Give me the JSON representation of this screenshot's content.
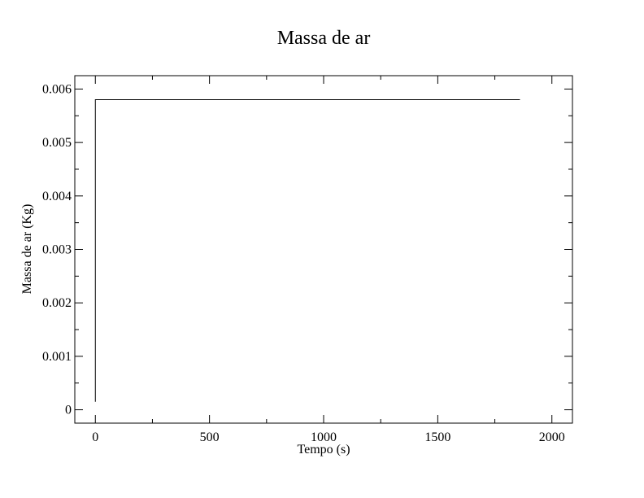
{
  "chart_data": {
    "type": "line",
    "title": "Massa de ar",
    "xlabel": "Tempo (s)",
    "ylabel": "Massa de ar (Kg)",
    "xlim": [
      -90,
      2090
    ],
    "ylim": [
      -0.00025,
      0.00625
    ],
    "xticks": [
      0,
      500,
      1000,
      1500,
      2000
    ],
    "xtick_labels": [
      "0",
      "500",
      "1000",
      "1500",
      "2000"
    ],
    "yticks": [
      0,
      0.001,
      0.002,
      0.003,
      0.004,
      0.005,
      0.006
    ],
    "ytick_labels": [
      "0",
      "0.001",
      "0.002",
      "0.003",
      "0.004",
      "0.005",
      "0.006"
    ],
    "grid": false,
    "series": [
      {
        "color": "#000000",
        "x": [
          0,
          0,
          1860
        ],
        "y": [
          0.00015,
          0.0058,
          0.0058
        ]
      }
    ]
  }
}
